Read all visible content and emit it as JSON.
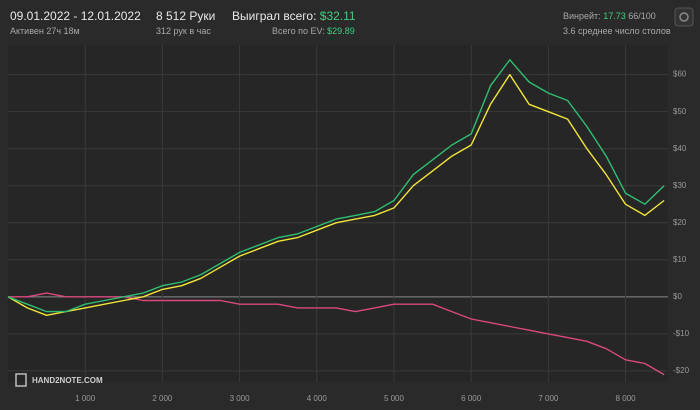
{
  "header": {
    "date_range": "09.01.2022 - 12.01.2022",
    "active": "Активен 27ч 18м",
    "hands": "8 512 Руки",
    "hands_per_hour": "312 рук в час",
    "won_label": "Выиграл всего:",
    "won_value": "$32.11",
    "ev_label": "Всего по EV:",
    "ev_value": "$29.89",
    "winrate_label": "Винрейт:",
    "winrate_value": "17.73",
    "winrate_sample": "66/100",
    "tables": "3.6 среднее число столов"
  },
  "logo": "HAND2NOTE.COM",
  "chart_data": {
    "type": "line",
    "x": [
      0,
      250,
      500,
      750,
      1000,
      1250,
      1500,
      1750,
      2000,
      2250,
      2500,
      2750,
      3000,
      3250,
      3500,
      3750,
      4000,
      4250,
      4500,
      4750,
      5000,
      5250,
      5500,
      5750,
      6000,
      6250,
      6500,
      6750,
      7000,
      7250,
      7500,
      7750,
      8000,
      8250,
      8500
    ],
    "series": [
      {
        "color": "#2fbf71",
        "values": [
          0,
          -2,
          -4,
          -4,
          -2,
          -1,
          0,
          1,
          3,
          4,
          6,
          9,
          12,
          14,
          16,
          17,
          19,
          21,
          22,
          23,
          26,
          33,
          37,
          41,
          44,
          57,
          64,
          58,
          55,
          53,
          46,
          38,
          28,
          25,
          30
        ]
      },
      {
        "color": "#f2e53a",
        "values": [
          0,
          -3,
          -5,
          -4,
          -3,
          -2,
          -1,
          0,
          2,
          3,
          5,
          8,
          11,
          13,
          15,
          16,
          18,
          20,
          21,
          22,
          24,
          30,
          34,
          38,
          41,
          52,
          60,
          52,
          50,
          48,
          40,
          33,
          25,
          22,
          26
        ]
      },
      {
        "color": "#d9487f",
        "values": [
          0,
          0,
          1,
          0,
          0,
          0,
          0,
          -1,
          -1,
          -1,
          -1,
          -1,
          -2,
          -2,
          -2,
          -3,
          -3,
          -3,
          -4,
          -3,
          -2,
          -2,
          -2,
          -4,
          -6,
          -7,
          -8,
          -9,
          -10,
          -11,
          -12,
          -14,
          -17,
          -18,
          -21
        ]
      }
    ],
    "xlim": [
      0,
      8550
    ],
    "xticks": [
      {
        "value": 1000,
        "label": "1 000"
      },
      {
        "value": 2000,
        "label": "2 000"
      },
      {
        "value": 3000,
        "label": "3 000"
      },
      {
        "value": 4000,
        "label": "4 000"
      },
      {
        "value": 5000,
        "label": "5 000"
      },
      {
        "value": 6000,
        "label": "6 000"
      },
      {
        "value": 7000,
        "label": "7 000"
      },
      {
        "value": 8000,
        "label": "8 000"
      }
    ],
    "ylim": [
      -23,
      68
    ],
    "yticks": [
      {
        "value": -20,
        "label": "-$20"
      },
      {
        "value": -10,
        "label": "-$10"
      },
      {
        "value": 0,
        "label": "$0"
      },
      {
        "value": 10,
        "label": "$10"
      },
      {
        "value": 20,
        "label": "$20"
      },
      {
        "value": 30,
        "label": "$30"
      },
      {
        "value": 40,
        "label": "$40"
      },
      {
        "value": 50,
        "label": "$50"
      },
      {
        "value": 60,
        "label": "$60"
      }
    ],
    "grid": true
  }
}
